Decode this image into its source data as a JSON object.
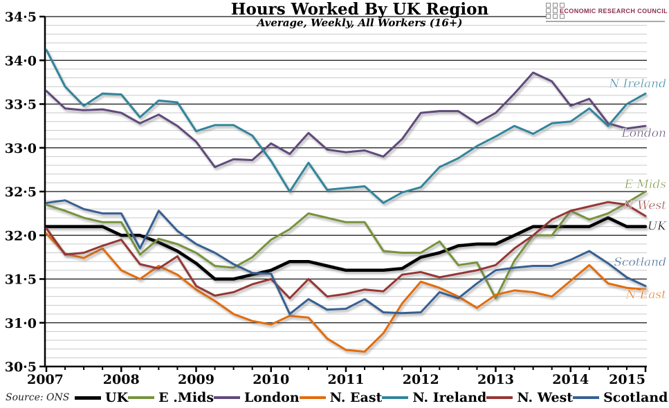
{
  "header": {
    "title": "Hours Worked By UK Region",
    "subtitle": "Average, Weekly, All Workers (16+)"
  },
  "logo": {
    "text": "ECONOMIC RESEARCH COUNCIL",
    "color": "#8C2E51"
  },
  "source_note": "Source: ONS",
  "chart_data": {
    "type": "line",
    "title": "Hours Worked By UK Region",
    "subtitle": "Average, Weekly, All Workers (16+)",
    "x_unit": "quarterly",
    "x_range": [
      "2007 Q1",
      "2015 Q1"
    ],
    "x_ticks": [
      "2007",
      "2008",
      "2009",
      "2010",
      "2011",
      "2012",
      "2013",
      "2014",
      "2015"
    ],
    "y_ticks": [
      "30·5",
      "31·0",
      "31·5",
      "32·0",
      "32·5",
      "33·0",
      "33·5",
      "34·0",
      "34·5"
    ],
    "ylim": [
      30.5,
      34.5
    ],
    "grid": {
      "major_step": 0.5,
      "minor_step": 0.1
    },
    "legend_position": "bottom",
    "series": [
      {
        "name": "UK",
        "end_label": "UK",
        "color": "#000000",
        "line_width": 4.5,
        "values": [
          32.1,
          32.1,
          32.1,
          32.1,
          32.0,
          32.0,
          31.92,
          31.82,
          31.68,
          31.5,
          31.5,
          31.55,
          31.6,
          31.7,
          31.7,
          31.65,
          31.6,
          31.6,
          31.6,
          31.62,
          31.75,
          31.8,
          31.88,
          31.9,
          31.9,
          32.0,
          32.1,
          32.1,
          32.1,
          32.1,
          32.2,
          32.1,
          32.1
        ]
      },
      {
        "name": "E .Mids",
        "end_label": "E Mids",
        "color": "#77933C",
        "line_width": 3,
        "values": [
          32.35,
          32.28,
          32.2,
          32.15,
          32.15,
          31.78,
          31.96,
          31.9,
          31.8,
          31.65,
          31.63,
          31.75,
          31.95,
          32.07,
          32.25,
          32.2,
          32.15,
          32.15,
          31.82,
          31.8,
          31.8,
          31.93,
          31.66,
          31.69,
          31.28,
          31.71,
          32.0,
          32.0,
          32.28,
          32.18,
          32.25,
          32.37,
          32.5
        ]
      },
      {
        "name": "London",
        "end_label": "London",
        "color": "#604A7B",
        "line_width": 3,
        "values": [
          33.65,
          33.45,
          33.43,
          33.44,
          33.4,
          33.28,
          33.38,
          33.25,
          33.07,
          32.78,
          32.87,
          32.86,
          33.05,
          32.93,
          33.17,
          32.98,
          32.95,
          32.97,
          32.9,
          33.1,
          33.4,
          33.42,
          33.42,
          33.28,
          33.4,
          33.62,
          33.86,
          33.76,
          33.48,
          33.56,
          33.28,
          33.22,
          33.25
        ]
      },
      {
        "name": "N. East",
        "end_label": "N East",
        "color": "#E36C0A",
        "line_width": 3,
        "values": [
          32.02,
          31.79,
          31.74,
          31.85,
          31.6,
          31.5,
          31.65,
          31.55,
          31.38,
          31.25,
          31.1,
          31.02,
          30.98,
          31.08,
          31.06,
          30.82,
          30.69,
          30.67,
          30.88,
          31.22,
          31.47,
          31.4,
          31.3,
          31.17,
          31.32,
          31.37,
          31.35,
          31.3,
          31.48,
          31.66,
          31.45,
          31.4,
          31.38
        ]
      },
      {
        "name": "N. Ireland",
        "end_label": "N Ireland",
        "color": "#31859C",
        "line_width": 3,
        "values": [
          34.12,
          33.7,
          33.48,
          33.62,
          33.61,
          33.35,
          33.54,
          33.52,
          33.19,
          33.26,
          33.26,
          33.14,
          32.85,
          32.5,
          32.83,
          32.52,
          32.54,
          32.56,
          32.37,
          32.49,
          32.55,
          32.78,
          32.88,
          33.02,
          33.13,
          33.25,
          33.16,
          33.28,
          33.3,
          33.45,
          33.25,
          33.5,
          33.62
        ]
      },
      {
        "name": "N. West",
        "end_label": "N West",
        "color": "#953735",
        "line_width": 3,
        "values": [
          32.08,
          31.78,
          31.8,
          31.88,
          31.95,
          31.67,
          31.62,
          31.76,
          31.42,
          31.31,
          31.35,
          31.44,
          31.5,
          31.28,
          31.5,
          31.3,
          31.33,
          31.38,
          31.36,
          31.55,
          31.58,
          31.52,
          31.56,
          31.6,
          31.66,
          31.85,
          32.0,
          32.18,
          32.28,
          32.33,
          32.38,
          32.35,
          32.22
        ]
      },
      {
        "name": "Scotland",
        "end_label": "Scotland",
        "color": "#376092",
        "line_width": 3,
        "values": [
          32.37,
          32.4,
          32.3,
          32.25,
          32.25,
          31.85,
          32.28,
          32.05,
          31.9,
          31.8,
          31.67,
          31.57,
          31.56,
          31.1,
          31.27,
          31.15,
          31.16,
          31.27,
          31.12,
          31.11,
          31.12,
          31.35,
          31.28,
          31.45,
          31.6,
          31.63,
          31.65,
          31.65,
          31.72,
          31.82,
          31.68,
          31.52,
          31.42
        ]
      }
    ]
  }
}
